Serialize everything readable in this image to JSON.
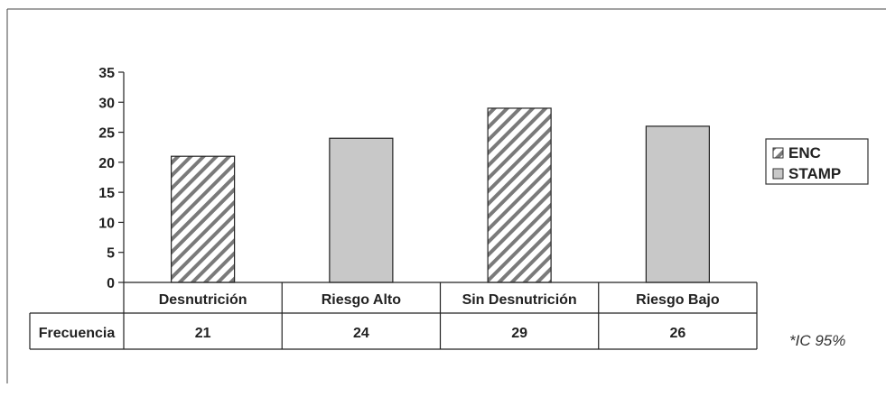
{
  "chart_data": {
    "type": "bar",
    "categories": [
      "Desnutrición",
      "Riesgo Alto",
      "Sin Desnutrición",
      "Riesgo Bajo"
    ],
    "values": [
      21,
      24,
      29,
      26
    ],
    "series_assignment": [
      "ENC",
      "STAMP",
      "ENC",
      "STAMP"
    ],
    "legend": [
      {
        "name": "ENC",
        "fill": "hatched"
      },
      {
        "name": "STAMP",
        "fill": "solid"
      }
    ],
    "legend_position": "right",
    "ylim": [
      0,
      35
    ],
    "yticks": [
      0,
      5,
      10,
      15,
      20,
      25,
      30,
      35
    ],
    "table": {
      "row_label": "Frecuencia",
      "values": [
        "21",
        "24",
        "29",
        "26"
      ]
    },
    "annotation": "*IC 95%",
    "title": "",
    "xlabel": "",
    "ylabel": "",
    "grid": false,
    "colors": {
      "bar_fill": "#c8c8c8",
      "hatch": "#7a7a7a",
      "outline": "#222222"
    }
  }
}
